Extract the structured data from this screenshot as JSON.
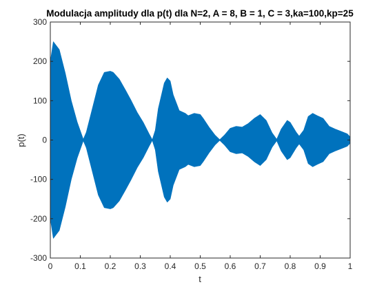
{
  "chart_data": {
    "type": "area",
    "title": "Modulacja amplitudy dla p(t) dla N=2, A = 8, B = 1, C = 3,ka=100,kp=25",
    "xlabel": "t",
    "ylabel": "p(t)",
    "xlim": [
      0,
      1
    ],
    "ylim": [
      -300,
      300
    ],
    "x_ticks": [
      "0",
      "0.1",
      "0.2",
      "0.3",
      "0.4",
      "0.5",
      "0.6",
      "0.7",
      "0.8",
      "0.9",
      "1"
    ],
    "y_ticks": [
      "-300",
      "-200",
      "-100",
      "0",
      "100",
      "200",
      "300"
    ],
    "grid": false,
    "fill_color": "#0072BD",
    "series": [
      {
        "envelope_x": [
          0,
          0.01,
          0.03,
          0.05,
          0.07,
          0.09,
          0.11,
          0.12,
          0.14,
          0.16,
          0.18,
          0.2,
          0.21,
          0.23,
          0.25,
          0.27,
          0.29,
          0.31,
          0.33,
          0.34,
          0.35,
          0.36,
          0.38,
          0.39,
          0.4,
          0.41,
          0.43,
          0.45,
          0.46,
          0.48,
          0.5,
          0.51,
          0.53,
          0.55,
          0.565,
          0.58,
          0.6,
          0.62,
          0.64,
          0.66,
          0.68,
          0.7,
          0.72,
          0.74,
          0.755,
          0.77,
          0.79,
          0.8,
          0.82,
          0.83,
          0.845,
          0.86,
          0.875,
          0.89,
          0.91,
          0.93,
          0.95,
          0.97,
          0.99,
          1.0
        ],
        "envelope_y": [
          200,
          250,
          230,
          170,
          100,
          45,
          2,
          20,
          80,
          140,
          172,
          175,
          172,
          155,
          128,
          100,
          70,
          45,
          15,
          1,
          25,
          80,
          145,
          158,
          150,
          115,
          75,
          68,
          62,
          68,
          65,
          55,
          32,
          12,
          1,
          12,
          30,
          35,
          33,
          42,
          55,
          65,
          50,
          18,
          2,
          28,
          50,
          45,
          20,
          10,
          25,
          60,
          68,
          62,
          55,
          35,
          28,
          22,
          16,
          8
        ]
      }
    ]
  }
}
